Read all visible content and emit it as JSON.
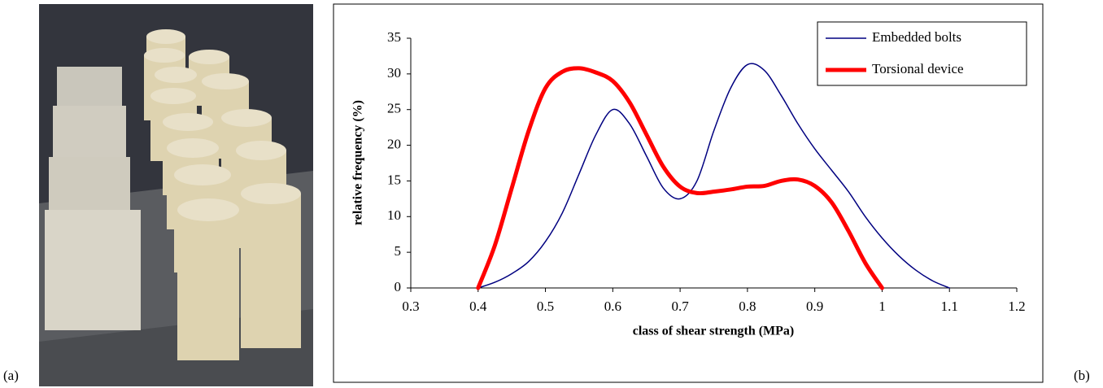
{
  "panel_labels": [
    "(a)",
    "(b)"
  ],
  "chart_data": {
    "type": "line",
    "xlabel": "class of shear strength (MPa)",
    "ylabel": "relative frequency (%)",
    "xlim": [
      0.3,
      1.2
    ],
    "xticks": [
      0.3,
      0.4,
      0.5,
      0.6,
      0.7,
      0.8,
      0.9,
      1,
      1.1,
      1.2
    ],
    "ylim": [
      0,
      35
    ],
    "yticks": [
      0,
      5,
      10,
      15,
      20,
      25,
      30,
      35
    ],
    "legend": "upper right",
    "series": [
      {
        "name": "Embedded bolts",
        "color": "#000080",
        "width": 1.5,
        "x": [
          0.4,
          0.425,
          0.45,
          0.475,
          0.5,
          0.525,
          0.55,
          0.575,
          0.6,
          0.625,
          0.65,
          0.675,
          0.7,
          0.725,
          0.75,
          0.775,
          0.8,
          0.825,
          0.85,
          0.875,
          0.9,
          0.925,
          0.95,
          0.975,
          1.0,
          1.025,
          1.05,
          1.075,
          1.1
        ],
        "values": [
          0,
          0.8,
          2,
          3.7,
          6.5,
          10.5,
          16,
          21.5,
          25,
          23,
          18.5,
          14,
          12.5,
          15,
          22,
          28,
          31.3,
          30.5,
          27,
          23,
          19.5,
          16.5,
          13.5,
          10,
          7,
          4.5,
          2.5,
          1,
          0
        ]
      },
      {
        "name": "Torsional device",
        "color": "#ff0000",
        "width": 5,
        "x": [
          0.4,
          0.425,
          0.45,
          0.475,
          0.5,
          0.525,
          0.55,
          0.575,
          0.6,
          0.625,
          0.65,
          0.675,
          0.7,
          0.725,
          0.75,
          0.775,
          0.8,
          0.825,
          0.85,
          0.875,
          0.9,
          0.925,
          0.95,
          0.975,
          1.0
        ],
        "values": [
          0,
          6,
          14,
          22,
          28,
          30.3,
          30.8,
          30.2,
          29,
          26,
          21.5,
          17,
          14.2,
          13.3,
          13.5,
          13.8,
          14.2,
          14.3,
          15,
          15.2,
          14.3,
          12,
          8,
          3.5,
          0
        ]
      }
    ]
  }
}
